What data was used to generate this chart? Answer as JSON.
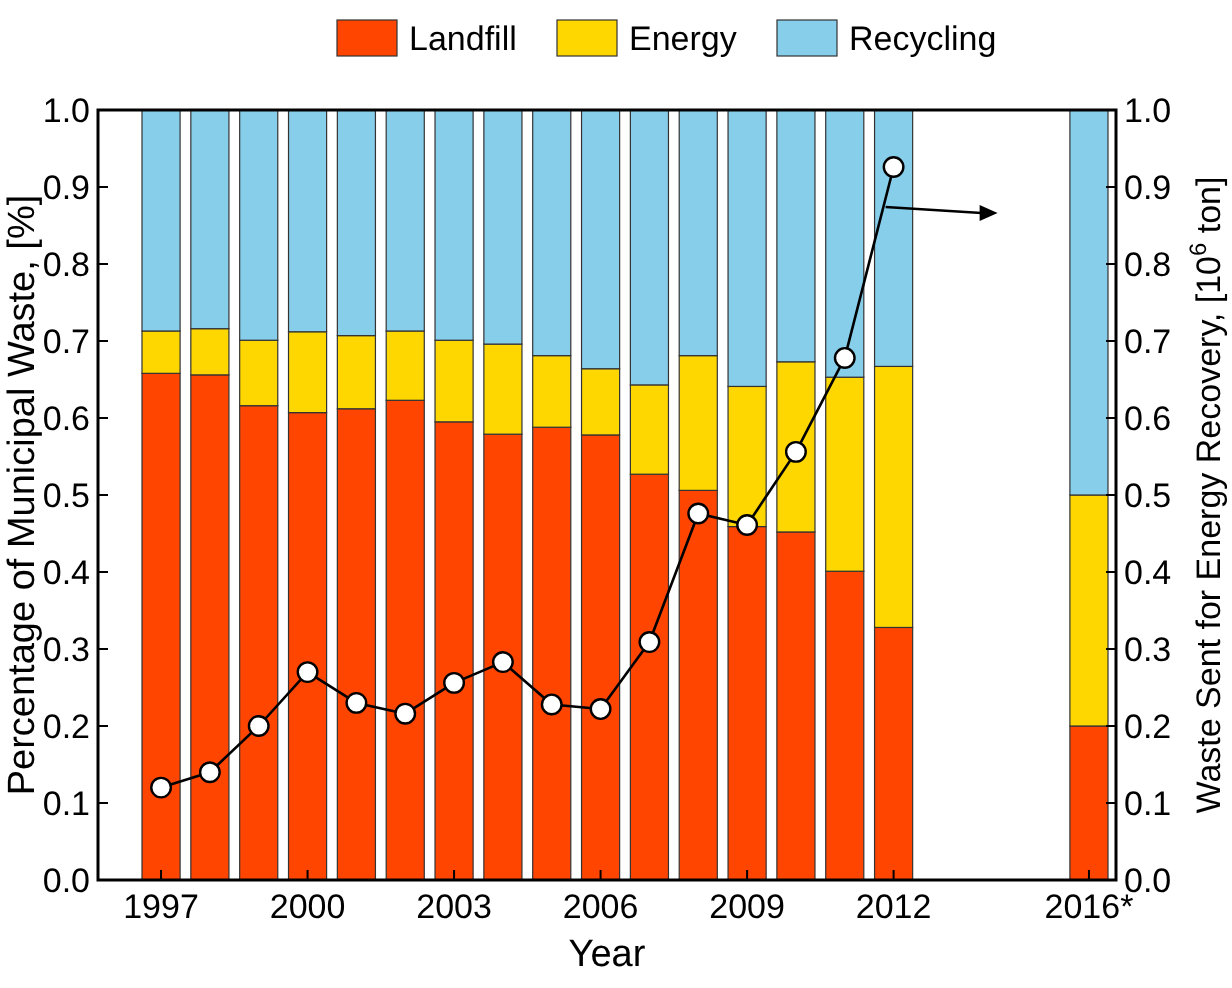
{
  "chart_data": {
    "type": "bar",
    "stacked": true,
    "xlabel": "Year",
    "ylabel": "Percentage of Municipal Waste,  [%]",
    "y2label": "Waste Sent for Energy Recovery, [10$^{6}$ ton]",
    "categories": [
      "1997",
      null,
      null,
      "2000",
      null,
      null,
      "2003",
      null,
      null,
      "2006",
      null,
      null,
      "2009",
      null,
      null,
      "2012",
      null,
      null,
      null,
      "2016*"
    ],
    "series": [
      {
        "name": "Landfill",
        "color": "#ff4500",
        "values": [
          0.658,
          0.656,
          0.616,
          0.607,
          0.612,
          0.623,
          0.595,
          0.579,
          0.588,
          0.578,
          0.527,
          0.506,
          0.459,
          0.452,
          0.401,
          0.328,
          null,
          null,
          null,
          0.2
        ]
      },
      {
        "name": "Energy",
        "color": "#ffd700",
        "values": [
          0.055,
          0.06,
          0.085,
          0.105,
          0.095,
          0.09,
          0.106,
          0.117,
          0.093,
          0.086,
          0.116,
          0.175,
          0.182,
          0.221,
          0.252,
          0.339,
          null,
          null,
          null,
          0.3
        ]
      },
      {
        "name": "Recycling",
        "color": "#87ceeb",
        "values": [
          0.287,
          0.284,
          0.299,
          0.288,
          0.293,
          0.287,
          0.299,
          0.304,
          0.319,
          0.336,
          0.357,
          0.319,
          0.359,
          0.327,
          0.347,
          0.333,
          null,
          null,
          null,
          0.5
        ]
      },
      {
        "type": "line",
        "axis": "y2",
        "color": "#000000",
        "values": [
          0.12,
          0.14,
          0.2,
          0.27,
          0.23,
          0.216,
          0.256,
          0.283,
          0.228,
          0.222,
          0.309,
          0.476,
          0.461,
          0.556,
          0.678,
          0.926,
          null,
          null,
          null,
          null
        ]
      }
    ],
    "ylim": [
      0,
      1
    ],
    "yticks": [
      {
        "value": 0,
        "label": "0.0"
      },
      0.1,
      0.2,
      0.3,
      0.4,
      0.5,
      0.6,
      0.7,
      0.8,
      0.9,
      {
        "value": 1,
        "label": "1.0"
      }
    ],
    "y2lim": [
      0,
      1
    ],
    "y2ticks": [
      {
        "value": 0,
        "label": "0.0"
      },
      0.1,
      0.2,
      0.3,
      0.4,
      0.5,
      0.6,
      0.7,
      0.8,
      0.9,
      {
        "value": 1,
        "label": "1.0"
      }
    ],
    "legend": "top",
    "marker": "circle",
    "line_style": "solid"
  }
}
